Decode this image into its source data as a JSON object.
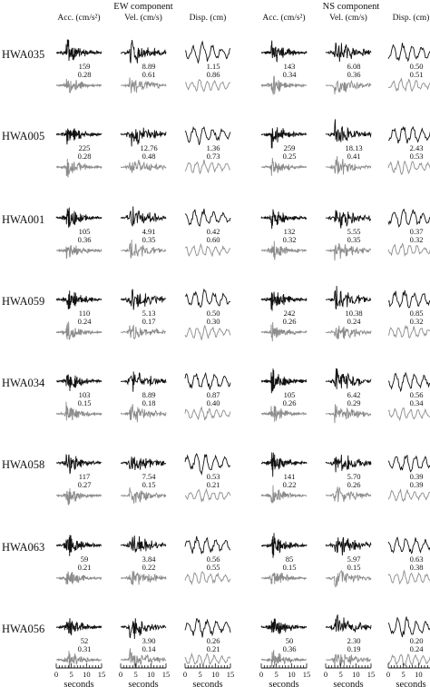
{
  "figure": {
    "component_titles": [
      "EW component",
      "NS component"
    ],
    "column_headers": [
      "Acc. (cm/s²)",
      "Vel. (cm/s)",
      "Disp. (cm)",
      "Acc. (cm/s²)",
      "Vel. (cm/s)",
      "Disp. (cm)"
    ],
    "time_label": "seconds",
    "time_ticks": [
      "0",
      "5",
      "10",
      "15"
    ],
    "colors": {
      "observed": "#111111",
      "simulated": "#8c8c8c",
      "text": "#111111"
    }
  },
  "stations": [
    {
      "name": "HWA035",
      "peaks": [
        [
          "159",
          "0.28"
        ],
        [
          "8.89",
          "0.61"
        ],
        [
          "1.15",
          "0.86"
        ],
        [
          "143",
          "0.34"
        ],
        [
          "6.08",
          "0.36"
        ],
        [
          "0.50",
          "0.51"
        ]
      ]
    },
    {
      "name": "HWA005",
      "peaks": [
        [
          "225",
          "0.28"
        ],
        [
          "12.76",
          "0.48"
        ],
        [
          "1.36",
          "0.73"
        ],
        [
          "259",
          "0.25"
        ],
        [
          "18.13",
          "0.41"
        ],
        [
          "2.43",
          "0.53"
        ]
      ]
    },
    {
      "name": "HWA001",
      "peaks": [
        [
          "105",
          "0.36"
        ],
        [
          "4.91",
          "0.35"
        ],
        [
          "0.42",
          "0.60"
        ],
        [
          "132",
          "0.32"
        ],
        [
          "5.55",
          "0.35"
        ],
        [
          "0.37",
          "0.32"
        ]
      ]
    },
    {
      "name": "HWA059",
      "peaks": [
        [
          "110",
          "0.24"
        ],
        [
          "5.13",
          "0.17"
        ],
        [
          "0.50",
          "0.30"
        ],
        [
          "242",
          "0.26"
        ],
        [
          "10.38",
          "0.24"
        ],
        [
          "0.85",
          "0.32"
        ]
      ]
    },
    {
      "name": "HWA034",
      "peaks": [
        [
          "103",
          "0.15"
        ],
        [
          "8.89",
          "0.18"
        ],
        [
          "0.87",
          "0.40"
        ],
        [
          "105",
          "0.26"
        ],
        [
          "6.42",
          "0.29"
        ],
        [
          "0.56",
          "0.34"
        ]
      ]
    },
    {
      "name": "HWA058",
      "peaks": [
        [
          "117",
          "0.27"
        ],
        [
          "7.54",
          "0.15"
        ],
        [
          "0.53",
          "0.21"
        ],
        [
          "141",
          "0.22"
        ],
        [
          "5.70",
          "0.26"
        ],
        [
          "0.39",
          "0.39"
        ]
      ]
    },
    {
      "name": "HWA063",
      "peaks": [
        [
          "59",
          "0.21"
        ],
        [
          "3.84",
          "0.22"
        ],
        [
          "0.56",
          "0.55"
        ],
        [
          "85",
          "0.15"
        ],
        [
          "5.97",
          "0.15"
        ],
        [
          "0.63",
          "0.38"
        ]
      ]
    },
    {
      "name": "HWA056",
      "peaks": [
        [
          "52",
          "0.31"
        ],
        [
          "3.90",
          "0.14"
        ],
        [
          "0.26",
          "0.21"
        ],
        [
          "50",
          "0.36"
        ],
        [
          "2.30",
          "0.19"
        ],
        [
          "0.20",
          "0.24"
        ]
      ]
    }
  ]
}
